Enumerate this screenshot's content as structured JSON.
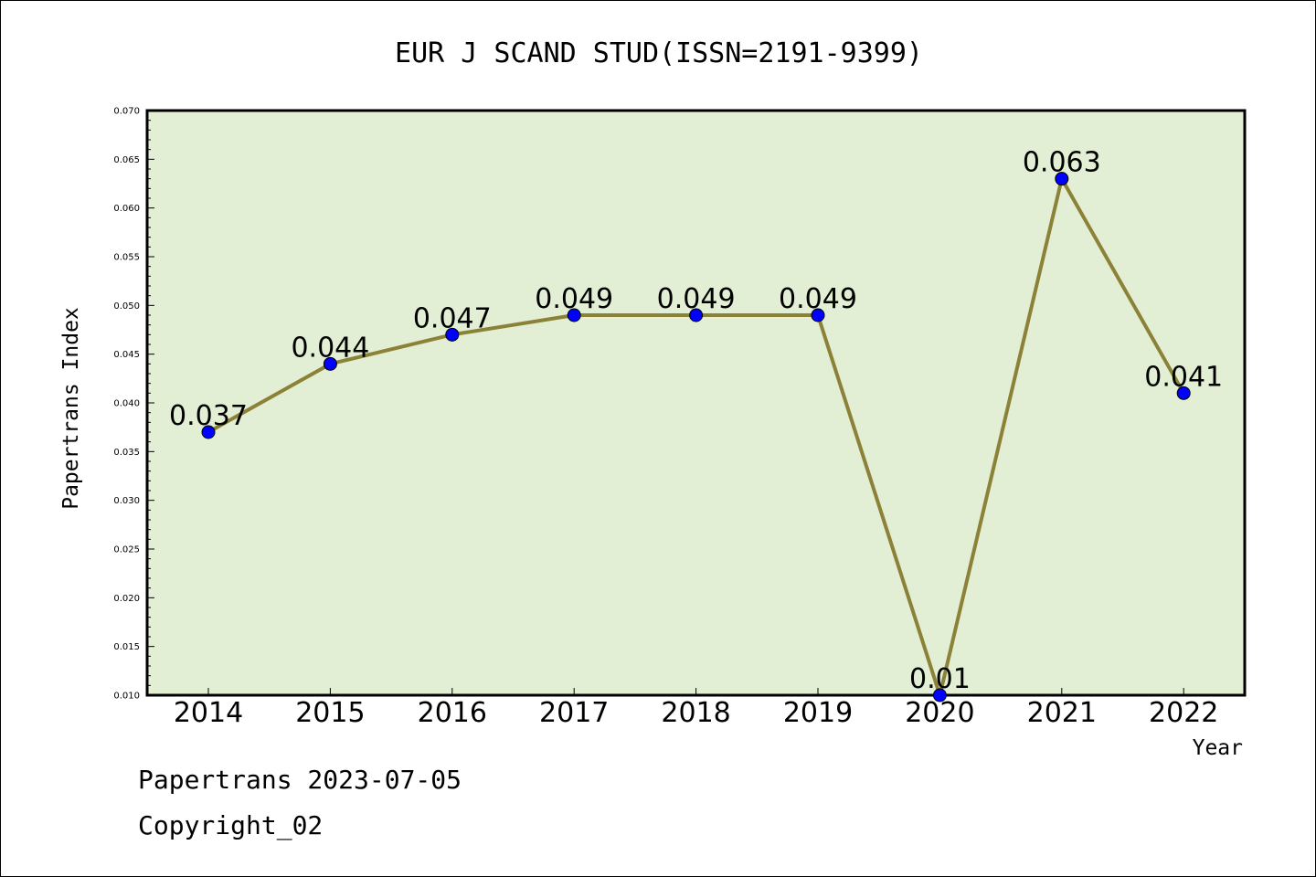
{
  "chart_data": {
    "type": "line",
    "title": "EUR J SCAND STUD(ISSN=2191-9399)",
    "xlabel": "Year",
    "ylabel": "Papertrans Index",
    "categories": [
      "2014",
      "2015",
      "2016",
      "2017",
      "2018",
      "2019",
      "2020",
      "2021",
      "2022"
    ],
    "values": [
      0.037,
      0.044,
      0.047,
      0.049,
      0.049,
      0.049,
      0.01,
      0.063,
      0.041
    ],
    "data_labels": [
      "0.037",
      "0.044",
      "0.047",
      "0.049",
      "0.049",
      "0.049",
      "0.01",
      "0.063",
      "0.041"
    ],
    "yticks": [
      "0.010",
      "0.015",
      "0.020",
      "0.025",
      "0.030",
      "0.035",
      "0.040",
      "0.045",
      "0.050",
      "0.055",
      "0.060",
      "0.065",
      "0.070"
    ],
    "ylim": [
      0.01,
      0.07
    ],
    "grid": false,
    "colors": {
      "plot_background": "#e2efd4",
      "line": "#8b8238",
      "marker": "#0000ff"
    }
  },
  "footer": {
    "line1": "Papertrans 2023-07-05",
    "line2": "Copyright_02"
  }
}
